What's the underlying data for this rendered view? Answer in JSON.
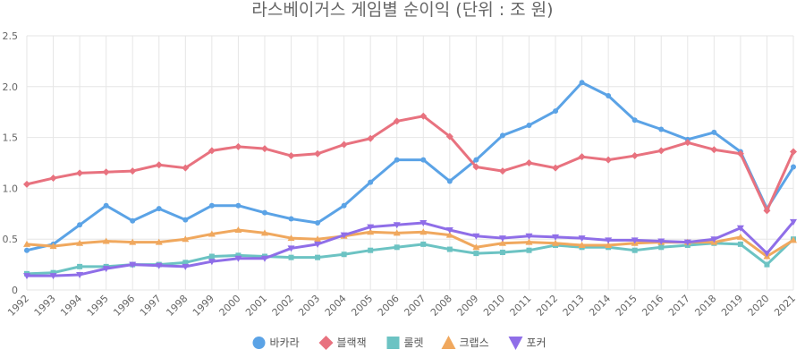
{
  "chart_data": {
    "type": "line",
    "title": "라스베이거스 게임별 순이익 (단위 : 조 원)",
    "xlabel": "",
    "ylabel": "",
    "ylim": [
      0,
      2.5
    ],
    "yticks": [
      "0",
      "0.5",
      "1.0",
      "1.5",
      "2.0",
      "2.5"
    ],
    "grid": true,
    "legend_position": "bottom",
    "x": [
      "1992",
      "1993",
      "1994",
      "1995",
      "1996",
      "1997",
      "1998",
      "1999",
      "2000",
      "2001",
      "2002",
      "2003",
      "2004",
      "2005",
      "2006",
      "2007",
      "2008",
      "2009",
      "2010",
      "2011",
      "2012",
      "2013",
      "2014",
      "2015",
      "2016",
      "2017",
      "2018",
      "2019",
      "2020",
      "2021"
    ],
    "series": [
      {
        "name": "바카라",
        "color": "#5ba3e6",
        "marker": "circle",
        "values": [
          0.39,
          0.45,
          0.64,
          0.83,
          0.68,
          0.8,
          0.69,
          0.83,
          0.83,
          0.76,
          0.7,
          0.66,
          0.83,
          1.06,
          1.28,
          1.28,
          1.07,
          1.28,
          1.52,
          1.62,
          1.76,
          2.04,
          1.91,
          1.67,
          1.58,
          1.48,
          1.55,
          1.36,
          0.8,
          1.21
        ]
      },
      {
        "name": "블랙잭",
        "color": "#e8727f",
        "marker": "diamond",
        "values": [
          1.04,
          1.1,
          1.15,
          1.16,
          1.17,
          1.23,
          1.2,
          1.37,
          1.41,
          1.39,
          1.32,
          1.34,
          1.43,
          1.49,
          1.66,
          1.71,
          1.51,
          1.21,
          1.17,
          1.25,
          1.2,
          1.31,
          1.28,
          1.32,
          1.37,
          1.45,
          1.38,
          1.34,
          0.78,
          1.36
        ]
      },
      {
        "name": "룰렛",
        "color": "#6cc3c3",
        "marker": "square",
        "values": [
          0.16,
          0.17,
          0.23,
          0.23,
          0.25,
          0.25,
          0.27,
          0.33,
          0.34,
          0.33,
          0.32,
          0.32,
          0.35,
          0.39,
          0.42,
          0.45,
          0.4,
          0.36,
          0.37,
          0.39,
          0.44,
          0.42,
          0.42,
          0.39,
          0.42,
          0.44,
          0.46,
          0.45,
          0.25,
          0.5
        ]
      },
      {
        "name": "크랩스",
        "color": "#f0a85e",
        "marker": "triangle",
        "values": [
          0.45,
          0.43,
          0.46,
          0.48,
          0.47,
          0.47,
          0.5,
          0.55,
          0.59,
          0.56,
          0.51,
          0.5,
          0.53,
          0.57,
          0.56,
          0.57,
          0.54,
          0.42,
          0.46,
          0.47,
          0.46,
          0.44,
          0.44,
          0.46,
          0.47,
          0.47,
          0.47,
          0.52,
          0.33,
          0.49
        ]
      },
      {
        "name": "포커",
        "color": "#8f6ee8",
        "marker": "triangle-down",
        "values": [
          0.14,
          0.14,
          0.15,
          0.21,
          0.25,
          0.24,
          0.23,
          0.28,
          0.31,
          0.31,
          0.41,
          0.45,
          0.54,
          0.62,
          0.64,
          0.66,
          0.59,
          0.53,
          0.51,
          0.53,
          0.52,
          0.51,
          0.49,
          0.49,
          0.48,
          0.47,
          0.5,
          0.61,
          0.36,
          0.67
        ]
      }
    ]
  }
}
